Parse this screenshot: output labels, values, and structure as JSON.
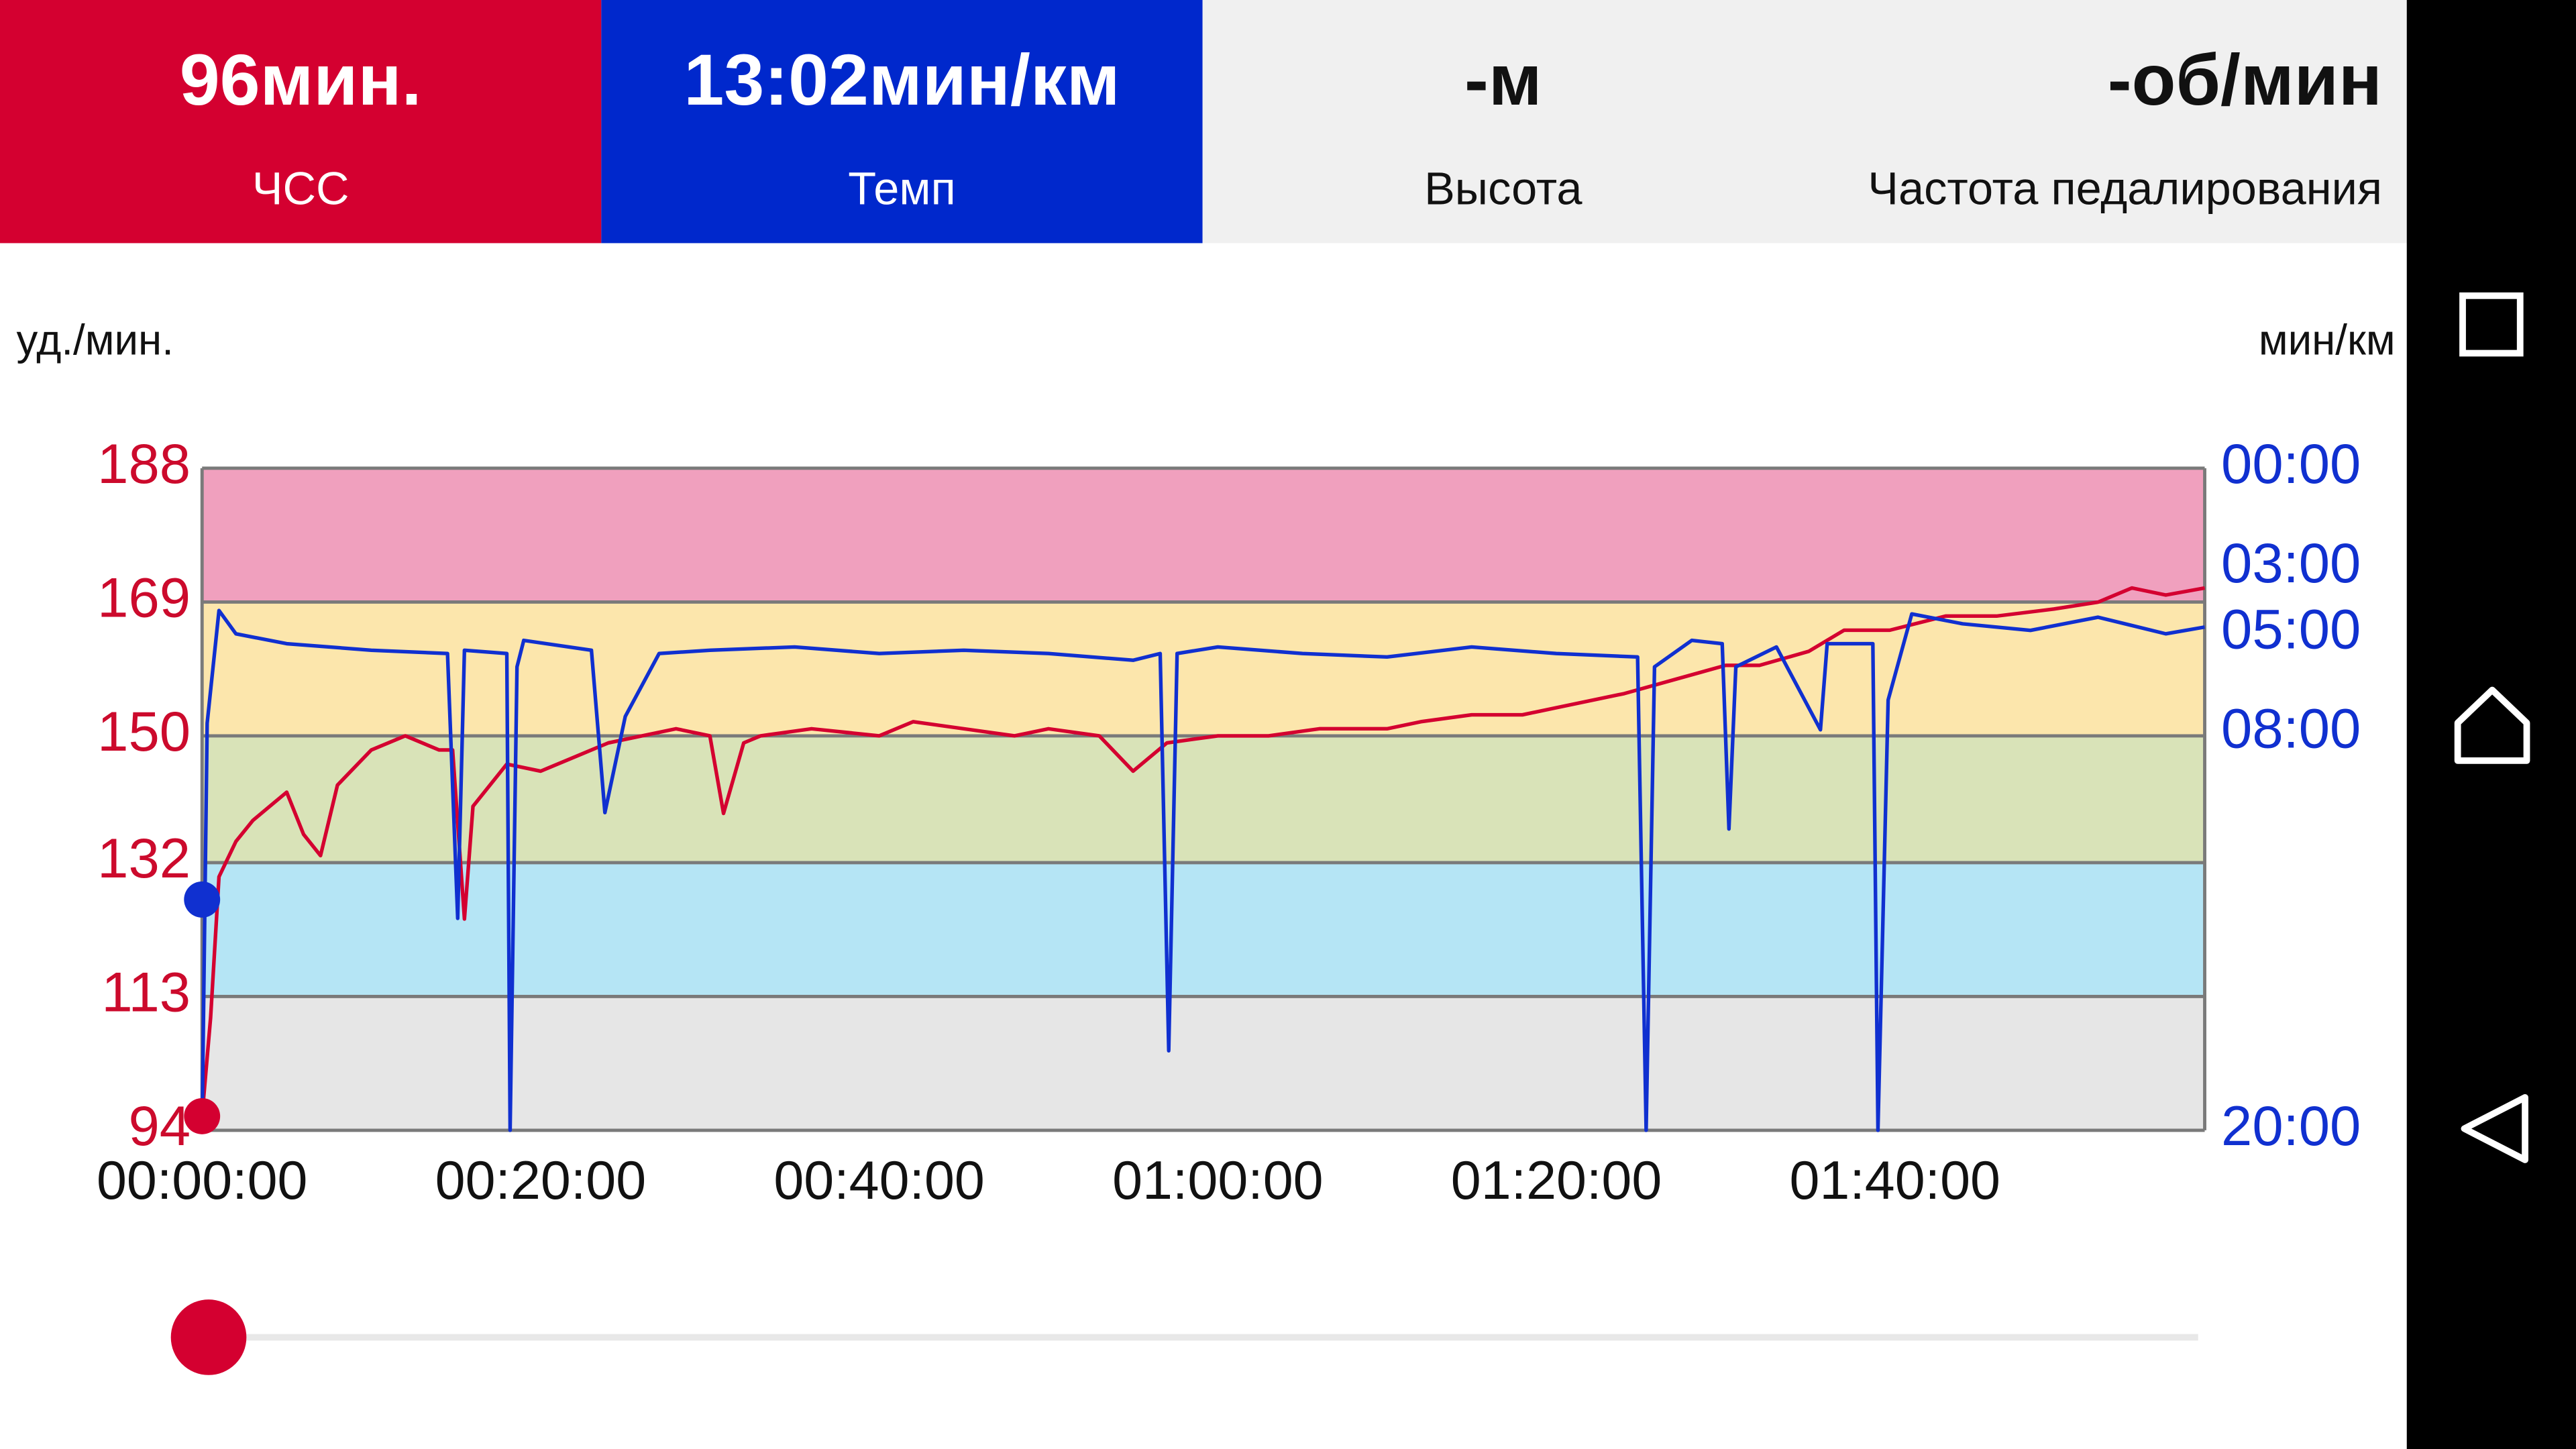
{
  "header": {
    "tiles": [
      {
        "value": "96мин.",
        "label": "ЧСС",
        "color": "#d40030"
      },
      {
        "value": "13:02мин/км",
        "label": "Темп",
        "color": "#0028cc"
      },
      {
        "value": "-м",
        "label": "Высота",
        "color": "#f0f0f0"
      },
      {
        "value": "-об/мин",
        "label": "Частота педалирования",
        "color": "#f0f0f0"
      }
    ]
  },
  "chart_data": {
    "type": "line",
    "y_label": "уд./мин.",
    "y2_label": "мин/км",
    "xlim": [
      0,
      118.3
    ],
    "xticks": [
      {
        "value": 0,
        "label": "00:00:00"
      },
      {
        "value": 20,
        "label": "00:20:00"
      },
      {
        "value": 40,
        "label": "00:40:00"
      },
      {
        "value": 60,
        "label": "01:00:00"
      },
      {
        "value": 80,
        "label": "01:20:00"
      },
      {
        "value": 100,
        "label": "01:40:00"
      }
    ],
    "ylim": [
      94,
      188
    ],
    "yticks": [
      94,
      113,
      132,
      150,
      169,
      188
    ],
    "y2lim": [
      20,
      0
    ],
    "y2ticks": [
      {
        "value": 0,
        "label": "00:00"
      },
      {
        "value": 3,
        "label": "03:00"
      },
      {
        "value": 5,
        "label": "05:00"
      },
      {
        "value": 8,
        "label": "08:00"
      },
      {
        "value": 20,
        "label": "20:00"
      }
    ],
    "zone_colors": [
      "#e6e6e6",
      "#b5e5f5",
      "#d9e3b8",
      "#fce6ac",
      "#f0a0be"
    ],
    "series": [
      {
        "name": "ЧСС",
        "color": "#d40030",
        "x": [
          0,
          0.5,
          1,
          2,
          3,
          4,
          5,
          6,
          7,
          8,
          10,
          12,
          14,
          14.8,
          15.5,
          16,
          18,
          20,
          22,
          24,
          26,
          28,
          30,
          30.8,
          32,
          33,
          36,
          40,
          42,
          45,
          48,
          50,
          53,
          55,
          57,
          60,
          63,
          66,
          70,
          72,
          75,
          78,
          80,
          84,
          87,
          90,
          92,
          94.9,
          97,
          99.7,
          103,
          106,
          109.4,
          112,
          114,
          116,
          118.3
        ],
        "values": [
          96,
          110,
          130,
          135,
          138,
          140,
          142,
          136,
          133,
          143,
          148,
          150,
          148,
          148,
          124,
          140,
          146,
          145,
          147,
          149,
          150,
          151,
          150,
          139,
          149,
          150,
          151,
          150,
          152,
          151,
          150,
          151,
          150,
          145,
          149,
          150,
          150,
          151,
          151,
          152,
          153,
          153,
          154,
          156,
          158,
          160,
          160,
          162,
          165,
          165,
          167,
          167,
          168,
          169,
          171,
          170,
          171
        ]
      },
      {
        "name": "Темп",
        "color": "#1030d0",
        "axis": "y2",
        "x": [
          0,
          0.3,
          1,
          2,
          5,
          10,
          14.5,
          15.1,
          15.5,
          18,
          18.2,
          18.6,
          19,
          23,
          23.8,
          25,
          27,
          30,
          35,
          40,
          45,
          50,
          55,
          56.6,
          57.1,
          57.6,
          60,
          65,
          70,
          75,
          80,
          84.8,
          85.3,
          85.8,
          88,
          89.8,
          90.2,
          90.6,
          93,
          95.6,
          96,
          98.7,
          99,
          99.6,
          101,
          104,
          108,
          112,
          116,
          118.3
        ],
        "values": [
          20,
          7.7,
          4.3,
          5.0,
          5.3,
          5.5,
          5.6,
          13.6,
          5.5,
          5.6,
          20,
          6.0,
          5.2,
          5.5,
          10.4,
          7.5,
          5.6,
          5.5,
          5.4,
          5.6,
          5.5,
          5.6,
          5.8,
          5.6,
          17.6,
          5.6,
          5.4,
          5.6,
          5.7,
          5.4,
          5.6,
          5.7,
          20,
          6.0,
          5.2,
          5.3,
          10.9,
          6.0,
          5.4,
          7.9,
          5.3,
          5.3,
          20,
          7.0,
          4.4,
          4.7,
          4.9,
          4.5,
          5.0,
          4.8
        ]
      }
    ],
    "cursor": {
      "x": 0,
      "values": [
        96,
        13.03
      ]
    }
  }
}
